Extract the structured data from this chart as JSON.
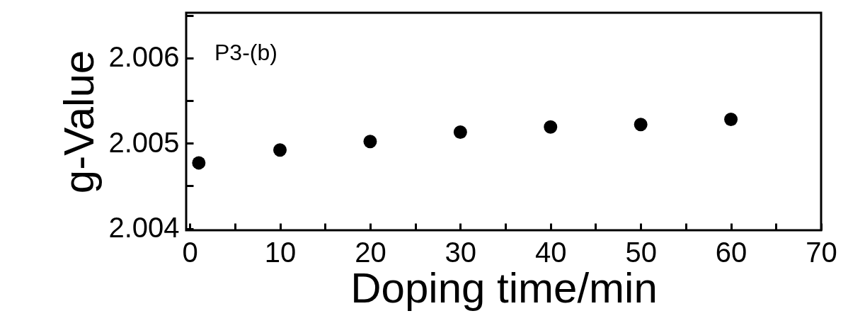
{
  "chart_data": {
    "type": "scatter",
    "xlabel": "Doping time/min",
    "ylabel": "g-Value",
    "x": [
      1,
      10,
      20,
      30,
      40,
      50,
      60
    ],
    "series": [
      {
        "color": "#000000",
        "values": [
          2.00477,
          2.00492,
          2.00502,
          2.00513,
          2.00519,
          2.00522,
          2.00528
        ]
      }
    ],
    "xlim": [
      -0.4,
      70
    ],
    "ylim": [
      2.00398,
      2.00653
    ],
    "xticks": [
      0,
      {
        "value": 5,
        "label": null
      },
      10,
      {
        "value": 15,
        "label": null
      },
      20,
      {
        "value": 25,
        "label": null
      },
      30,
      {
        "value": 35,
        "label": null
      },
      40,
      {
        "value": 45,
        "label": null
      },
      50,
      {
        "value": 55,
        "label": null
      },
      60,
      {
        "value": 65,
        "label": null
      },
      70
    ],
    "yticks": [
      {
        "value": 2.004,
        "label": "2.004"
      },
      {
        "value": 2.0045,
        "label": null
      },
      {
        "value": 2.005,
        "label": "2.005"
      },
      {
        "value": 2.0055,
        "label": null
      },
      {
        "value": 2.006,
        "label": "2.006"
      },
      {
        "value": 2.0065,
        "label": null
      }
    ],
    "annotations": [
      "P3-(b)"
    ],
    "marker": "circle",
    "grid": false
  }
}
